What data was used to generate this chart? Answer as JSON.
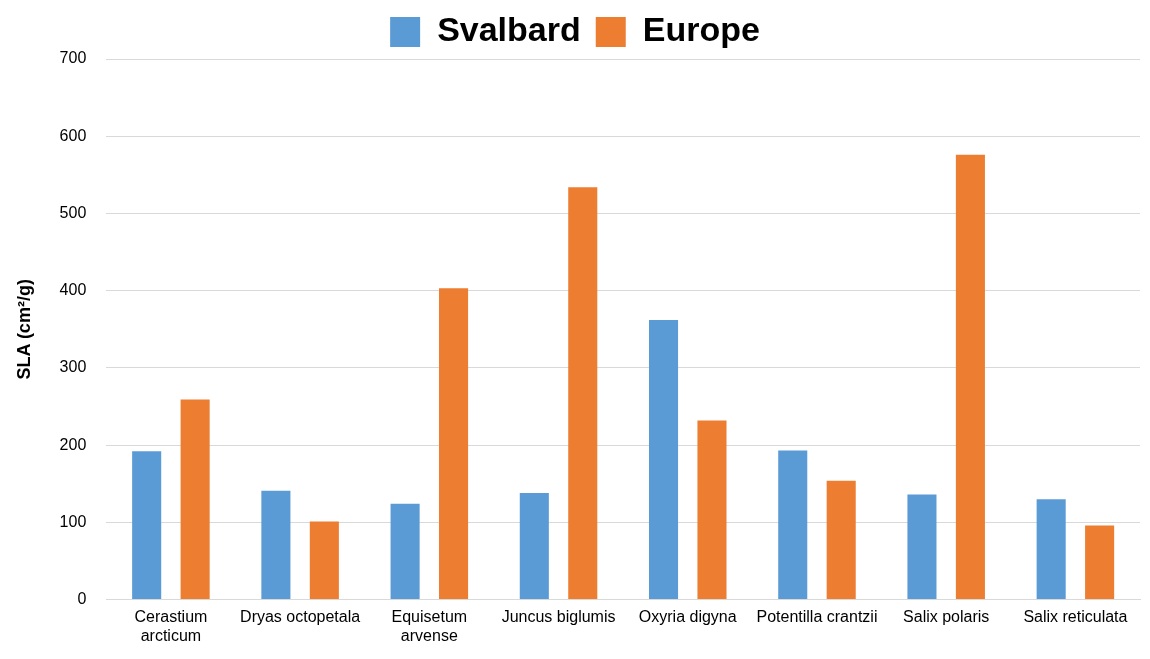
{
  "chart_data": {
    "type": "bar",
    "ylabel": "SLA (cm²/g)",
    "categories": [
      "Cerastium arcticum",
      "Dryas octopetala",
      "Equisetum arvense",
      "Juncus biglumis",
      "Oxyria digyna",
      "Potentilla crantzii",
      "Salix polaris",
      "Salix reticulata"
    ],
    "series": [
      {
        "name": "Svalbard",
        "color": "#5b9bd5",
        "values": [
          192,
          141,
          124,
          138,
          362,
          193,
          136,
          130
        ]
      },
      {
        "name": "Europe",
        "color": "#ed7d31",
        "values": [
          259,
          101,
          403,
          534,
          232,
          154,
          576,
          96
        ]
      }
    ],
    "ylim": [
      0,
      700
    ],
    "yticks": [
      0,
      100,
      200,
      300,
      400,
      500,
      600,
      700
    ],
    "grid": "y",
    "legend": "top"
  }
}
